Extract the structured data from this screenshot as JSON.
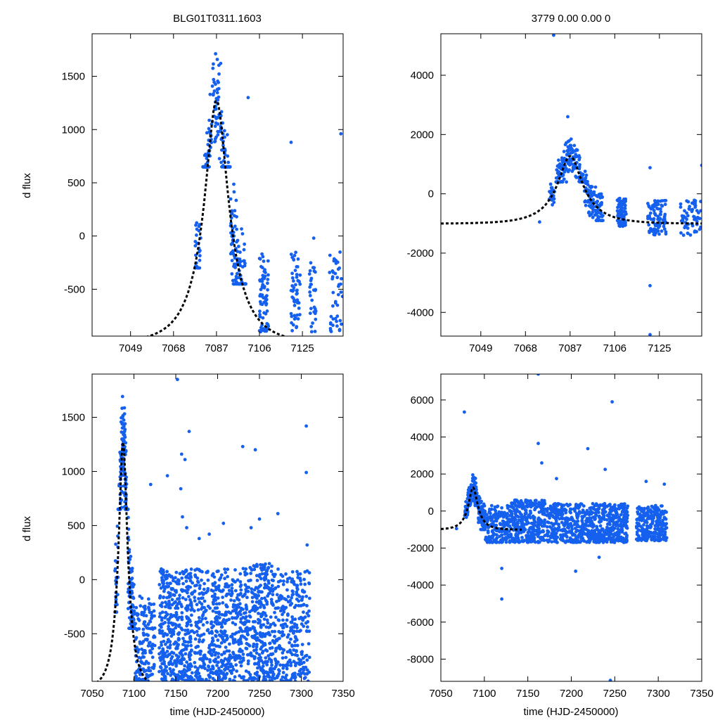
{
  "figure": {
    "title_left": "BLG01T0311.1603",
    "title_right": "3779  0.00  0.00  0",
    "ylabel": "d flux",
    "xlabel": "time (HJD-2450000)",
    "point_color": "#1560ee",
    "model_color": "#000000"
  },
  "chart_data": [
    {
      "id": "top-left",
      "type": "scatter",
      "title": "BLG01T0311.1603",
      "xlabel": "",
      "ylabel": "d flux",
      "xlim": [
        7032,
        7143
      ],
      "ylim": [
        -940,
        1900
      ],
      "xticks": [
        7049,
        7068,
        7087,
        7106,
        7125
      ],
      "yticks": [
        -500,
        0,
        500,
        1000,
        1500
      ],
      "model": {
        "t0": 7087,
        "peak": 1270,
        "base": -1013,
        "u0": 0.32,
        "tE": 16,
        "t_end": 7143
      },
      "clusters": [
        {
          "t": [
            7077.5,
            7080
          ],
          "ymin": -300,
          "ymax": 1000,
          "n": 28,
          "mode": "rise"
        },
        {
          "t": [
            7081,
            7093
          ],
          "ymin": 650,
          "ymax": 1900,
          "n": 160,
          "mode": "peak"
        },
        {
          "t": [
            7093,
            7100
          ],
          "ymin": -450,
          "ymax": 1200,
          "n": 110,
          "mode": "fall"
        },
        {
          "t": [
            7106,
            7110
          ],
          "ymin": -900,
          "ymax": -150,
          "n": 70
        },
        {
          "t": [
            7120,
            7124
          ],
          "ymin": -900,
          "ymax": -150,
          "n": 55
        },
        {
          "t": [
            7128,
            7131
          ],
          "ymin": -900,
          "ymax": -250,
          "n": 30
        },
        {
          "t": [
            7137,
            7143
          ],
          "ymin": -900,
          "ymax": -150,
          "n": 45
        }
      ],
      "outliers": [
        {
          "x": 7120,
          "y": 880
        },
        {
          "x": 7142,
          "y": 960
        },
        {
          "x": 7101,
          "y": 1300
        },
        {
          "x": 7130,
          "y": -20
        }
      ]
    },
    {
      "id": "top-right",
      "type": "scatter",
      "title": "3779  0.00  0.00  0",
      "xlabel": "",
      "ylabel": "",
      "xlim": [
        7032,
        7143
      ],
      "ylim": [
        -4800,
        5400
      ],
      "xticks": [
        7049,
        7068,
        7087,
        7106,
        7125
      ],
      "yticks": [
        -4000,
        -2000,
        0,
        2000,
        4000
      ],
      "model": {
        "t0": 7087,
        "peak": 1270,
        "base": -1013,
        "u0": 0.32,
        "tE": 16,
        "t_end": 7143
      },
      "clusters": [
        {
          "t": [
            7078,
            7080.5
          ],
          "ymin": -600,
          "ymax": 800,
          "n": 22,
          "mode": "rise"
        },
        {
          "t": [
            7081,
            7093
          ],
          "ymin": 400,
          "ymax": 2300,
          "n": 150,
          "mode": "peak"
        },
        {
          "t": [
            7093,
            7101
          ],
          "ymin": -900,
          "ymax": 1100,
          "n": 110,
          "mode": "fall"
        },
        {
          "t": [
            7107,
            7111
          ],
          "ymin": -1100,
          "ymax": -150,
          "n": 75
        },
        {
          "t": [
            7120,
            7128
          ],
          "ymin": -1400,
          "ymax": -200,
          "n": 90
        },
        {
          "t": [
            7134,
            7143
          ],
          "ymin": -1400,
          "ymax": -200,
          "n": 60
        }
      ],
      "outliers": [
        {
          "x": 7074,
          "y": -950
        },
        {
          "x": 7080,
          "y": 5350
        },
        {
          "x": 7121,
          "y": -3100
        },
        {
          "x": 7121,
          "y": -4750
        },
        {
          "x": 7121,
          "y": 880
        },
        {
          "x": 7143,
          "y": 960
        },
        {
          "x": 7086,
          "y": 2600
        }
      ]
    },
    {
      "id": "bottom-left",
      "type": "scatter",
      "title": "",
      "xlabel": "time (HJD-2450000)",
      "ylabel": "d flux",
      "xlim": [
        7050,
        7350
      ],
      "ylim": [
        -940,
        1900
      ],
      "xticks": [
        7050,
        7100,
        7150,
        7200,
        7250,
        7300,
        7350
      ],
      "yticks": [
        -500,
        0,
        500,
        1000,
        1500
      ],
      "model": {
        "t0": 7087,
        "peak": 1270,
        "base": -1013,
        "u0": 0.32,
        "tE": 16,
        "t_end": 7143
      },
      "clusters": [
        {
          "t": [
            7077,
            7081
          ],
          "ymin": -300,
          "ymax": 1000,
          "n": 28,
          "mode": "rise"
        },
        {
          "t": [
            7081,
            7093
          ],
          "ymin": 650,
          "ymax": 1900,
          "n": 160,
          "mode": "peak"
        },
        {
          "t": [
            7093,
            7101
          ],
          "ymin": -450,
          "ymax": 1200,
          "n": 110,
          "mode": "fall"
        },
        {
          "t": [
            7101,
            7125
          ],
          "ymin": -940,
          "ymax": -150,
          "n": 150
        },
        {
          "t": [
            7130,
            7170
          ],
          "ymin": -940,
          "ymax": 100,
          "n": 420
        },
        {
          "t": [
            7172,
            7230
          ],
          "ymin": -940,
          "ymax": 100,
          "n": 480
        },
        {
          "t": [
            7230,
            7265
          ],
          "ymin": -940,
          "ymax": 150,
          "n": 330
        },
        {
          "t": [
            7265,
            7310
          ],
          "ymin": -940,
          "ymax": 100,
          "n": 300
        }
      ],
      "outliers": [
        {
          "x": 7152,
          "y": 1850
        },
        {
          "x": 7166,
          "y": 1370
        },
        {
          "x": 7157,
          "y": 1160
        },
        {
          "x": 7161,
          "y": 1110
        },
        {
          "x": 7140,
          "y": 960
        },
        {
          "x": 7156,
          "y": 840
        },
        {
          "x": 7120,
          "y": 880
        },
        {
          "x": 7230,
          "y": 1230
        },
        {
          "x": 7245,
          "y": 1200
        },
        {
          "x": 7306,
          "y": 1420
        },
        {
          "x": 7306,
          "y": 990
        },
        {
          "x": 7158,
          "y": 580
        },
        {
          "x": 7163,
          "y": 480
        },
        {
          "x": 7207,
          "y": 520
        },
        {
          "x": 7250,
          "y": 560
        },
        {
          "x": 7272,
          "y": 610
        },
        {
          "x": 7240,
          "y": 480
        },
        {
          "x": 7307,
          "y": 320
        },
        {
          "x": 7190,
          "y": 420
        },
        {
          "x": 7178,
          "y": 380
        }
      ]
    },
    {
      "id": "bottom-right",
      "type": "scatter",
      "title": "",
      "xlabel": "time (HJD-2450000)",
      "ylabel": "",
      "xlim": [
        7050,
        7350
      ],
      "ylim": [
        -9200,
        7400
      ],
      "xticks": [
        7050,
        7100,
        7150,
        7200,
        7250,
        7300,
        7350
      ],
      "yticks": [
        -8000,
        -6000,
        -4000,
        -2000,
        0,
        2000,
        4000,
        6000
      ],
      "model": {
        "t0": 7087,
        "peak": 1270,
        "base": -1013,
        "u0": 0.32,
        "tE": 16,
        "t_end": 7143
      },
      "clusters": [
        {
          "t": [
            7077,
            7081
          ],
          "ymin": -500,
          "ymax": 900,
          "n": 22,
          "mode": "rise"
        },
        {
          "t": [
            7081,
            7093
          ],
          "ymin": 300,
          "ymax": 2300,
          "n": 150,
          "mode": "peak"
        },
        {
          "t": [
            7093,
            7101
          ],
          "ymin": -1000,
          "ymax": 1200,
          "n": 100,
          "mode": "fall"
        },
        {
          "t": [
            7101,
            7130
          ],
          "ymin": -1700,
          "ymax": 300,
          "n": 180
        },
        {
          "t": [
            7130,
            7170
          ],
          "ymin": -1700,
          "ymax": 600,
          "n": 330
        },
        {
          "t": [
            7172,
            7230
          ],
          "ymin": -1700,
          "ymax": 400,
          "n": 400
        },
        {
          "t": [
            7230,
            7265
          ],
          "ymin": -1700,
          "ymax": 400,
          "n": 300
        },
        {
          "t": [
            7275,
            7310
          ],
          "ymin": -1600,
          "ymax": 300,
          "n": 260
        }
      ],
      "outliers": [
        {
          "x": 7077,
          "y": 5350
        },
        {
          "x": 7162,
          "y": 7400
        },
        {
          "x": 7162,
          "y": 3650
        },
        {
          "x": 7247,
          "y": 5900
        },
        {
          "x": 7219,
          "y": 3370
        },
        {
          "x": 7245,
          "y": -9150
        },
        {
          "x": 7120,
          "y": -4750
        },
        {
          "x": 7120,
          "y": -3100
        },
        {
          "x": 7205,
          "y": -3250
        },
        {
          "x": 7166,
          "y": 2600
        },
        {
          "x": 7239,
          "y": 2250
        },
        {
          "x": 7307,
          "y": 1450
        },
        {
          "x": 7232,
          "y": -2500
        },
        {
          "x": 7183,
          "y": 1750
        },
        {
          "x": 7286,
          "y": 1600
        },
        {
          "x": 7068,
          "y": -950
        }
      ]
    }
  ]
}
